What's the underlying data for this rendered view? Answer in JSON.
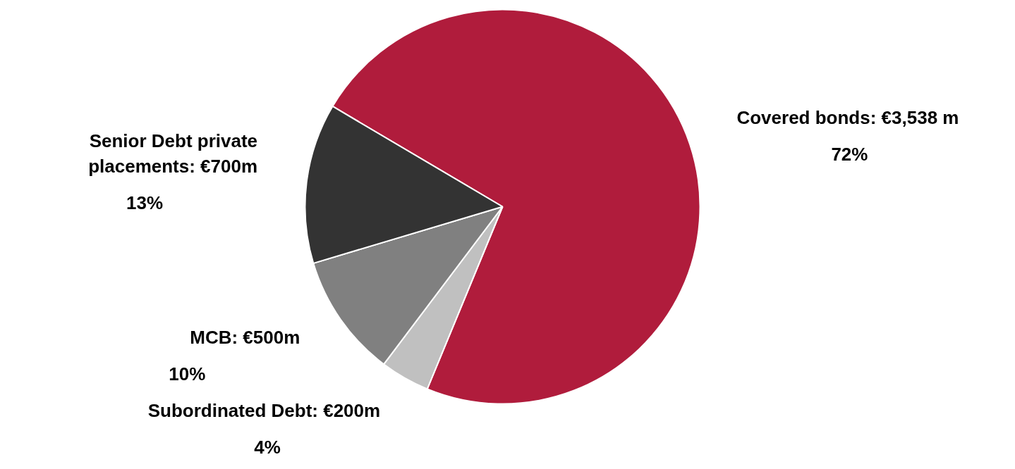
{
  "chart_data": {
    "type": "pie",
    "categories": [
      "Covered bonds: €3,538 m",
      "Subordinated Debt: €200m",
      "MCB: €500m",
      "Senior Debt private\nplacements: €700m"
    ],
    "values": [
      72,
      4,
      10,
      13
    ],
    "colors": [
      "#b01c3c",
      "#c0c0c0",
      "#808080",
      "#333333"
    ],
    "value_labels": [
      "72%",
      "4%",
      "10%",
      "13%"
    ]
  }
}
